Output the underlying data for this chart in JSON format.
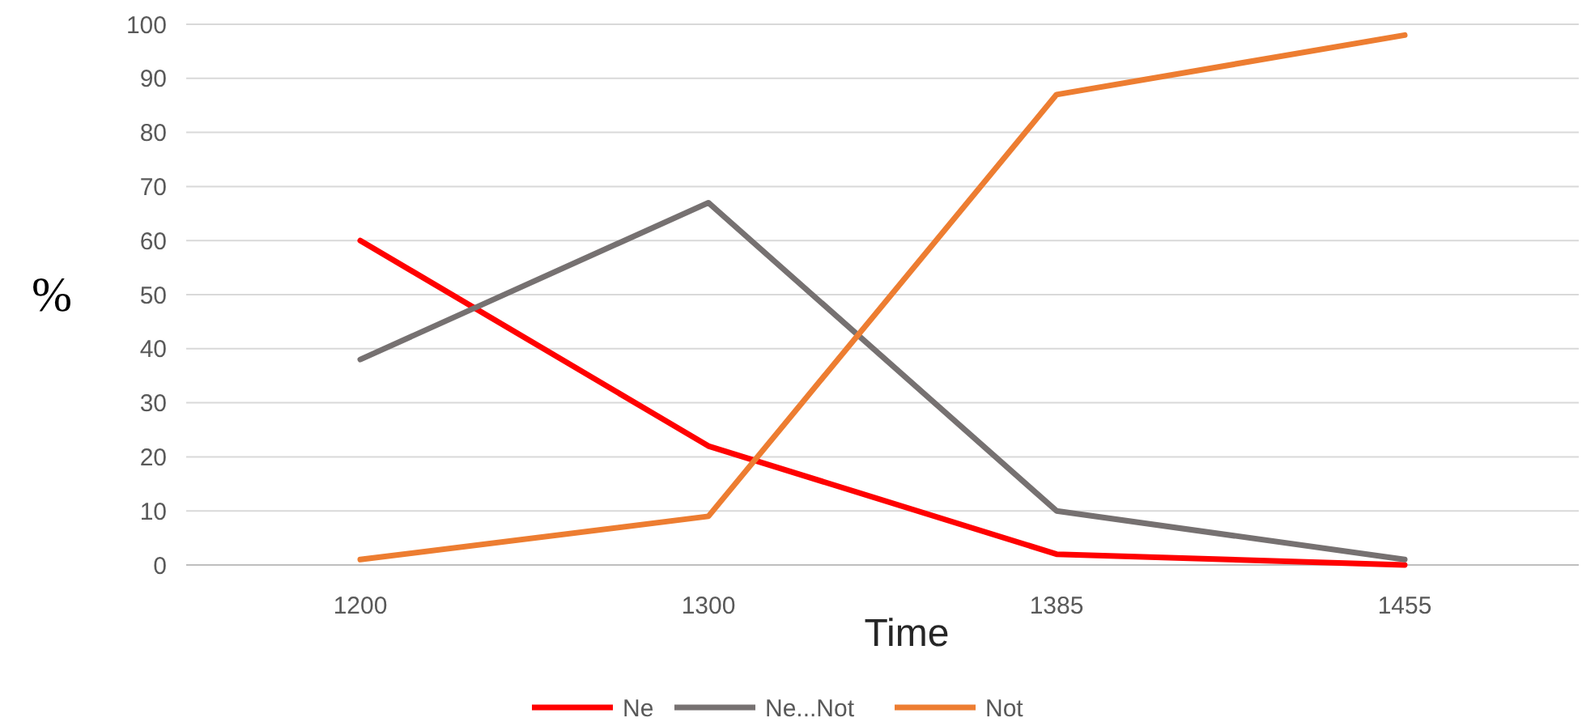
{
  "chart_data": {
    "type": "line",
    "xlabel": "Time",
    "ylabel": "%",
    "categories": [
      "1200",
      "1300",
      "1385",
      "1455"
    ],
    "series": [
      {
        "name": "Ne",
        "color": "#ff0000",
        "values": [
          60,
          22,
          2,
          0
        ]
      },
      {
        "name": "Ne...Not",
        "color": "#767171",
        "values": [
          38,
          67,
          10,
          1
        ]
      },
      {
        "name": "Not",
        "color": "#ed7d31",
        "values": [
          1,
          9,
          87,
          98
        ]
      }
    ],
    "ylim": [
      0,
      100
    ],
    "yticks": [
      0,
      10,
      20,
      30,
      40,
      50,
      60,
      70,
      80,
      90,
      100
    ],
    "grid": "y",
    "legend": "bottom"
  }
}
